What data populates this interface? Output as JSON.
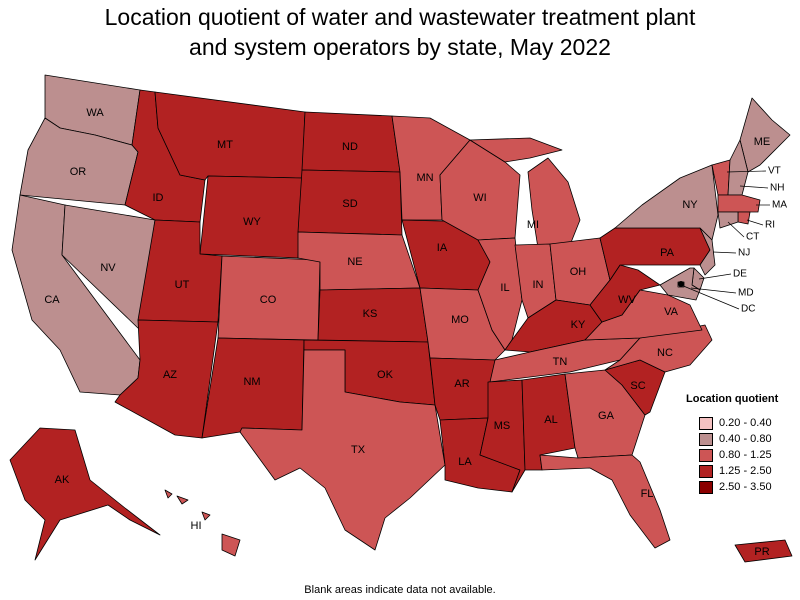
{
  "title": {
    "line1": "Location quotient of water and wastewater treatment plant",
    "line2": "and system operators by state, May 2022"
  },
  "legend": {
    "title": "Location quotient",
    "items": [
      {
        "label": "0.20 - 0.40",
        "color": "#f4c1c1"
      },
      {
        "label": "0.40 - 0.80",
        "color": "#bc8f8f"
      },
      {
        "label": "0.80 - 1.25",
        "color": "#cd5555"
      },
      {
        "label": "1.25 - 2.50",
        "color": "#b22222"
      },
      {
        "label": "2.50 - 3.50",
        "color": "#8b0000"
      }
    ]
  },
  "footnote": "Blank areas indicate data not available.",
  "states": [
    {
      "abbr": "WA",
      "class": "0.40 - 0.80"
    },
    {
      "abbr": "OR",
      "class": "0.40 - 0.80"
    },
    {
      "abbr": "CA",
      "class": "0.40 - 0.80"
    },
    {
      "abbr": "NV",
      "class": "0.40 - 0.80"
    },
    {
      "abbr": "ID",
      "class": "1.25 - 2.50"
    },
    {
      "abbr": "MT",
      "class": "1.25 - 2.50"
    },
    {
      "abbr": "WY",
      "class": "1.25 - 2.50"
    },
    {
      "abbr": "UT",
      "class": "1.25 - 2.50"
    },
    {
      "abbr": "AZ",
      "class": "1.25 - 2.50"
    },
    {
      "abbr": "CO",
      "class": "0.80 - 1.25"
    },
    {
      "abbr": "NM",
      "class": "1.25 - 2.50"
    },
    {
      "abbr": "ND",
      "class": "1.25 - 2.50"
    },
    {
      "abbr": "SD",
      "class": "1.25 - 2.50"
    },
    {
      "abbr": "NE",
      "class": "0.80 - 1.25"
    },
    {
      "abbr": "KS",
      "class": "1.25 - 2.50"
    },
    {
      "abbr": "OK",
      "class": "1.25 - 2.50"
    },
    {
      "abbr": "TX",
      "class": "0.80 - 1.25"
    },
    {
      "abbr": "MN",
      "class": "0.80 - 1.25"
    },
    {
      "abbr": "IA",
      "class": "1.25 - 2.50"
    },
    {
      "abbr": "MO",
      "class": "0.80 - 1.25"
    },
    {
      "abbr": "AR",
      "class": "1.25 - 2.50"
    },
    {
      "abbr": "LA",
      "class": "1.25 - 2.50"
    },
    {
      "abbr": "WI",
      "class": "0.80 - 1.25"
    },
    {
      "abbr": "IL",
      "class": "0.80 - 1.25"
    },
    {
      "abbr": "MI",
      "class": "0.80 - 1.25"
    },
    {
      "abbr": "IN",
      "class": "0.80 - 1.25"
    },
    {
      "abbr": "OH",
      "class": "0.80 - 1.25"
    },
    {
      "abbr": "KY",
      "class": "1.25 - 2.50"
    },
    {
      "abbr": "TN",
      "class": "0.80 - 1.25"
    },
    {
      "abbr": "MS",
      "class": "1.25 - 2.50"
    },
    {
      "abbr": "AL",
      "class": "1.25 - 2.50"
    },
    {
      "abbr": "GA",
      "class": "0.80 - 1.25"
    },
    {
      "abbr": "FL",
      "class": "0.80 - 1.25"
    },
    {
      "abbr": "SC",
      "class": "1.25 - 2.50"
    },
    {
      "abbr": "NC",
      "class": "0.80 - 1.25"
    },
    {
      "abbr": "VA",
      "class": "0.80 - 1.25"
    },
    {
      "abbr": "WV",
      "class": "1.25 - 2.50"
    },
    {
      "abbr": "PA",
      "class": "1.25 - 2.50"
    },
    {
      "abbr": "NY",
      "class": "0.40 - 0.80"
    },
    {
      "abbr": "ME",
      "class": "0.40 - 0.80"
    },
    {
      "abbr": "VT",
      "class": "0.80 - 1.25"
    },
    {
      "abbr": "NH",
      "class": "0.40 - 0.80"
    },
    {
      "abbr": "MA",
      "class": "0.80 - 1.25"
    },
    {
      "abbr": "RI",
      "class": "0.80 - 1.25"
    },
    {
      "abbr": "CT",
      "class": "0.40 - 0.80"
    },
    {
      "abbr": "NJ",
      "class": "0.40 - 0.80"
    },
    {
      "abbr": "DE",
      "class": "0.40 - 0.80"
    },
    {
      "abbr": "MD",
      "class": "0.40 - 0.80"
    },
    {
      "abbr": "DC",
      "class": "0.20 - 0.40"
    },
    {
      "abbr": "AK",
      "class": "1.25 - 2.50"
    },
    {
      "abbr": "HI",
      "class": "0.80 - 1.25"
    },
    {
      "abbr": "PR",
      "class": "1.25 - 2.50"
    }
  ]
}
